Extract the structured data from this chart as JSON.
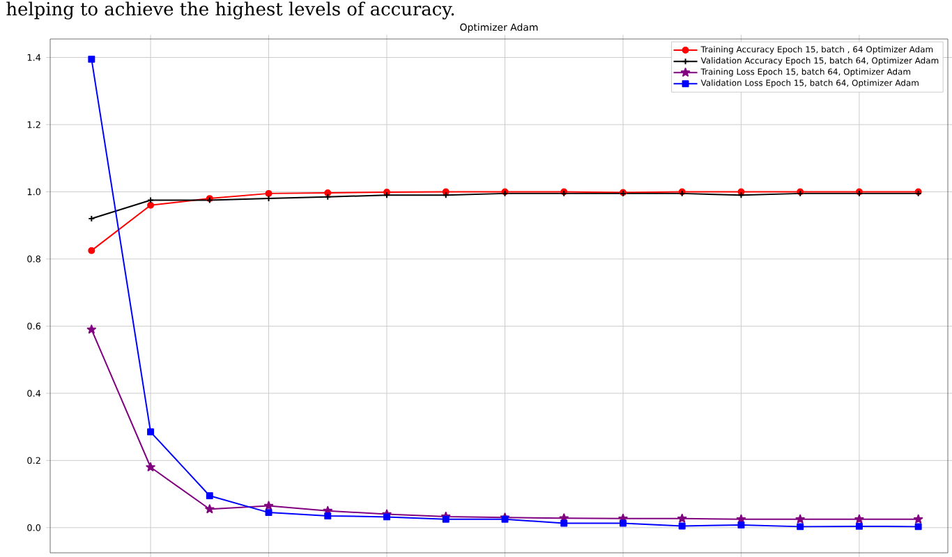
{
  "chart_data": {
    "type": "line",
    "title": "Optimizer Adam",
    "annotations": [
      "helping to achieve the highest levels of accuracy."
    ],
    "categories": [
      null,
      null,
      null,
      null,
      null,
      null,
      null,
      null,
      null,
      null,
      null,
      null,
      null,
      null,
      null
    ],
    "series": [
      {
        "name": "Training Accuracy Epoch 15, batch , 64 Optimizer Adam",
        "color": "#ff0000",
        "marker": "circle",
        "values": [
          0.825,
          0.96,
          0.98,
          0.995,
          0.997,
          0.999,
          1.0,
          1.0,
          1.0,
          0.998,
          1.0,
          1.0,
          1.0,
          1.0,
          1.0
        ]
      },
      {
        "name": "Validation Accuracy Epoch 15, batch 64, Optimizer Adam",
        "color": "#000000",
        "marker": "cross",
        "values": [
          0.92,
          0.975,
          0.975,
          0.98,
          0.985,
          0.99,
          0.99,
          0.995,
          0.995,
          0.995,
          0.995,
          0.99,
          0.995,
          0.995,
          0.995
        ]
      },
      {
        "name": "Training Loss Epoch 15, batch 64, Optimizer Adam",
        "color": "#800080",
        "marker": "star",
        "values": [
          0.59,
          0.18,
          0.055,
          0.065,
          0.05,
          0.04,
          0.033,
          0.03,
          0.028,
          0.027,
          0.027,
          0.025,
          0.025,
          0.025,
          0.025
        ]
      },
      {
        "name": "Validation Loss Epoch 15, batch 64, Optimizer Adam",
        "color": "#0000ff",
        "marker": "square",
        "values": [
          1.395,
          0.285,
          0.095,
          0.045,
          0.035,
          0.032,
          0.025,
          0.025,
          0.013,
          0.013,
          0.005,
          0.008,
          0.003,
          0.004,
          0.003
        ]
      }
    ],
    "ylim": [
      -0.075,
      1.455
    ],
    "yticks": [
      {
        "value": 0,
        "label": "0.0"
      },
      {
        "value": 0.2,
        "label": "0.2"
      },
      {
        "value": 0.4,
        "label": "0.4"
      },
      {
        "value": 0.6,
        "label": "0.6"
      },
      {
        "value": 0.8,
        "label": "0.8"
      },
      {
        "value": 1.0,
        "label": "1.0"
      },
      {
        "value": 1.2,
        "label": "1.2"
      },
      {
        "value": 1.4,
        "label": "1.4"
      }
    ],
    "tick_labels": "y",
    "grid": true,
    "legend": "top right",
    "line_style": "solid"
  }
}
